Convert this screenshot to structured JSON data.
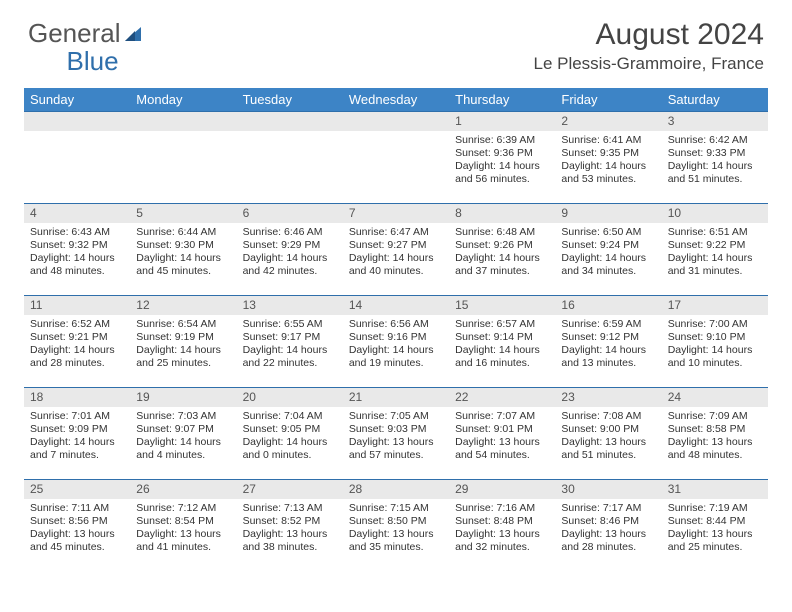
{
  "logo": {
    "part1": "General",
    "part2": "Blue"
  },
  "title": "August 2024",
  "location": "Le Plessis-Grammoire, France",
  "colors": {
    "header_bg": "#3d84c6",
    "header_text": "#ffffff",
    "border": "#2f6fab",
    "daynum_bg": "#e9e9e9",
    "text": "#333333",
    "logo_gray": "#555555",
    "logo_blue": "#2f6fab"
  },
  "weekdays": [
    "Sunday",
    "Monday",
    "Tuesday",
    "Wednesday",
    "Thursday",
    "Friday",
    "Saturday"
  ],
  "weeks": [
    [
      {
        "blank": true
      },
      {
        "blank": true
      },
      {
        "blank": true
      },
      {
        "blank": true
      },
      {
        "day": "1",
        "sunrise": "Sunrise: 6:39 AM",
        "sunset": "Sunset: 9:36 PM",
        "daylight": "Daylight: 14 hours and 56 minutes."
      },
      {
        "day": "2",
        "sunrise": "Sunrise: 6:41 AM",
        "sunset": "Sunset: 9:35 PM",
        "daylight": "Daylight: 14 hours and 53 minutes."
      },
      {
        "day": "3",
        "sunrise": "Sunrise: 6:42 AM",
        "sunset": "Sunset: 9:33 PM",
        "daylight": "Daylight: 14 hours and 51 minutes."
      }
    ],
    [
      {
        "day": "4",
        "sunrise": "Sunrise: 6:43 AM",
        "sunset": "Sunset: 9:32 PM",
        "daylight": "Daylight: 14 hours and 48 minutes."
      },
      {
        "day": "5",
        "sunrise": "Sunrise: 6:44 AM",
        "sunset": "Sunset: 9:30 PM",
        "daylight": "Daylight: 14 hours and 45 minutes."
      },
      {
        "day": "6",
        "sunrise": "Sunrise: 6:46 AM",
        "sunset": "Sunset: 9:29 PM",
        "daylight": "Daylight: 14 hours and 42 minutes."
      },
      {
        "day": "7",
        "sunrise": "Sunrise: 6:47 AM",
        "sunset": "Sunset: 9:27 PM",
        "daylight": "Daylight: 14 hours and 40 minutes."
      },
      {
        "day": "8",
        "sunrise": "Sunrise: 6:48 AM",
        "sunset": "Sunset: 9:26 PM",
        "daylight": "Daylight: 14 hours and 37 minutes."
      },
      {
        "day": "9",
        "sunrise": "Sunrise: 6:50 AM",
        "sunset": "Sunset: 9:24 PM",
        "daylight": "Daylight: 14 hours and 34 minutes."
      },
      {
        "day": "10",
        "sunrise": "Sunrise: 6:51 AM",
        "sunset": "Sunset: 9:22 PM",
        "daylight": "Daylight: 14 hours and 31 minutes."
      }
    ],
    [
      {
        "day": "11",
        "sunrise": "Sunrise: 6:52 AM",
        "sunset": "Sunset: 9:21 PM",
        "daylight": "Daylight: 14 hours and 28 minutes."
      },
      {
        "day": "12",
        "sunrise": "Sunrise: 6:54 AM",
        "sunset": "Sunset: 9:19 PM",
        "daylight": "Daylight: 14 hours and 25 minutes."
      },
      {
        "day": "13",
        "sunrise": "Sunrise: 6:55 AM",
        "sunset": "Sunset: 9:17 PM",
        "daylight": "Daylight: 14 hours and 22 minutes."
      },
      {
        "day": "14",
        "sunrise": "Sunrise: 6:56 AM",
        "sunset": "Sunset: 9:16 PM",
        "daylight": "Daylight: 14 hours and 19 minutes."
      },
      {
        "day": "15",
        "sunrise": "Sunrise: 6:57 AM",
        "sunset": "Sunset: 9:14 PM",
        "daylight": "Daylight: 14 hours and 16 minutes."
      },
      {
        "day": "16",
        "sunrise": "Sunrise: 6:59 AM",
        "sunset": "Sunset: 9:12 PM",
        "daylight": "Daylight: 14 hours and 13 minutes."
      },
      {
        "day": "17",
        "sunrise": "Sunrise: 7:00 AM",
        "sunset": "Sunset: 9:10 PM",
        "daylight": "Daylight: 14 hours and 10 minutes."
      }
    ],
    [
      {
        "day": "18",
        "sunrise": "Sunrise: 7:01 AM",
        "sunset": "Sunset: 9:09 PM",
        "daylight": "Daylight: 14 hours and 7 minutes."
      },
      {
        "day": "19",
        "sunrise": "Sunrise: 7:03 AM",
        "sunset": "Sunset: 9:07 PM",
        "daylight": "Daylight: 14 hours and 4 minutes."
      },
      {
        "day": "20",
        "sunrise": "Sunrise: 7:04 AM",
        "sunset": "Sunset: 9:05 PM",
        "daylight": "Daylight: 14 hours and 0 minutes."
      },
      {
        "day": "21",
        "sunrise": "Sunrise: 7:05 AM",
        "sunset": "Sunset: 9:03 PM",
        "daylight": "Daylight: 13 hours and 57 minutes."
      },
      {
        "day": "22",
        "sunrise": "Sunrise: 7:07 AM",
        "sunset": "Sunset: 9:01 PM",
        "daylight": "Daylight: 13 hours and 54 minutes."
      },
      {
        "day": "23",
        "sunrise": "Sunrise: 7:08 AM",
        "sunset": "Sunset: 9:00 PM",
        "daylight": "Daylight: 13 hours and 51 minutes."
      },
      {
        "day": "24",
        "sunrise": "Sunrise: 7:09 AM",
        "sunset": "Sunset: 8:58 PM",
        "daylight": "Daylight: 13 hours and 48 minutes."
      }
    ],
    [
      {
        "day": "25",
        "sunrise": "Sunrise: 7:11 AM",
        "sunset": "Sunset: 8:56 PM",
        "daylight": "Daylight: 13 hours and 45 minutes."
      },
      {
        "day": "26",
        "sunrise": "Sunrise: 7:12 AM",
        "sunset": "Sunset: 8:54 PM",
        "daylight": "Daylight: 13 hours and 41 minutes."
      },
      {
        "day": "27",
        "sunrise": "Sunrise: 7:13 AM",
        "sunset": "Sunset: 8:52 PM",
        "daylight": "Daylight: 13 hours and 38 minutes."
      },
      {
        "day": "28",
        "sunrise": "Sunrise: 7:15 AM",
        "sunset": "Sunset: 8:50 PM",
        "daylight": "Daylight: 13 hours and 35 minutes."
      },
      {
        "day": "29",
        "sunrise": "Sunrise: 7:16 AM",
        "sunset": "Sunset: 8:48 PM",
        "daylight": "Daylight: 13 hours and 32 minutes."
      },
      {
        "day": "30",
        "sunrise": "Sunrise: 7:17 AM",
        "sunset": "Sunset: 8:46 PM",
        "daylight": "Daylight: 13 hours and 28 minutes."
      },
      {
        "day": "31",
        "sunrise": "Sunrise: 7:19 AM",
        "sunset": "Sunset: 8:44 PM",
        "daylight": "Daylight: 13 hours and 25 minutes."
      }
    ]
  ]
}
